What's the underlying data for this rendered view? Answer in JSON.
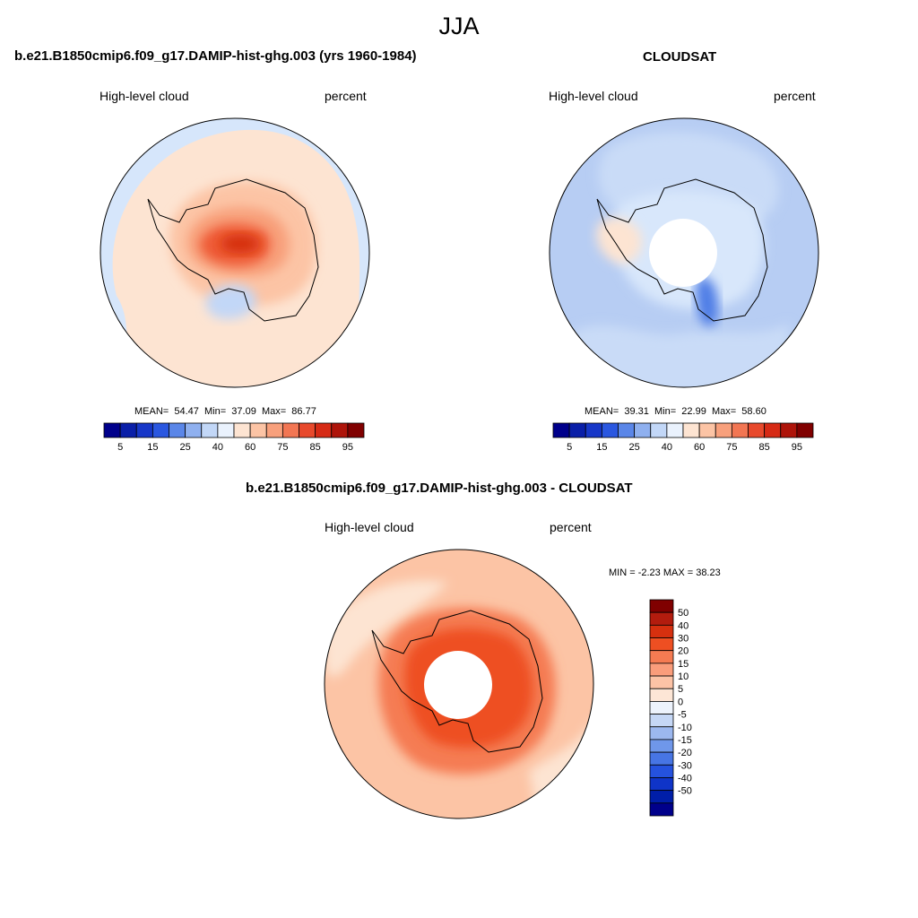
{
  "season": "JJA",
  "variable_label": "High-level cloud",
  "units_label": "percent",
  "panels": [
    {
      "id": "model",
      "title": "b.e21.B1850cmip6.f09_g17.DAMIP-hist-ghg.003 (yrs 1960-1984)",
      "stats": {
        "mean_label": "MEAN=",
        "mean": "54.47",
        "min_label": "Min=",
        "min": "37.09",
        "max_label": "Max=",
        "max": "86.77"
      }
    },
    {
      "id": "obs",
      "title": "CLOUDSAT",
      "stats": {
        "mean_label": "MEAN=",
        "mean": "39.31",
        "min_label": "Min=",
        "min": "22.99",
        "max_label": "Max=",
        "max": "58.60"
      }
    },
    {
      "id": "diff",
      "title": "b.e21.B1850cmip6.f09_g17.DAMIP-hist-ghg.003 - CLOUDSAT",
      "stats_text": "MIN =  -2.23 MAX =  38.23"
    }
  ],
  "abs_colorbar": {
    "colors": [
      "#00008b",
      "#0a1fa8",
      "#1737c8",
      "#2a57e0",
      "#5a86e8",
      "#8fb0ef",
      "#c2d7f7",
      "#eaf2fd",
      "#fde4d2",
      "#fcc4a5",
      "#f8a07c",
      "#f27653",
      "#e8492c",
      "#d62a15",
      "#ae140a",
      "#800000"
    ],
    "tick_labels": [
      "5",
      "15",
      "25",
      "40",
      "60",
      "75",
      "85",
      "95"
    ]
  },
  "diff_colorbar": {
    "colors": [
      "#800000",
      "#b31c0e",
      "#d6300f",
      "#ee4f22",
      "#f57b52",
      "#fa9d7b",
      "#fcc3a6",
      "#fde6d6",
      "#edf3fc",
      "#c5d7f5",
      "#9cb8ef",
      "#6f97ea",
      "#4775e4",
      "#2552de",
      "#0f34c8",
      "#001ea8",
      "#00008b"
    ],
    "tick_labels": [
      "50",
      "40",
      "30",
      "20",
      "15",
      "10",
      "5",
      "0",
      "-5",
      "-10",
      "-15",
      "-20",
      "-30",
      "-40",
      "-50"
    ]
  }
}
